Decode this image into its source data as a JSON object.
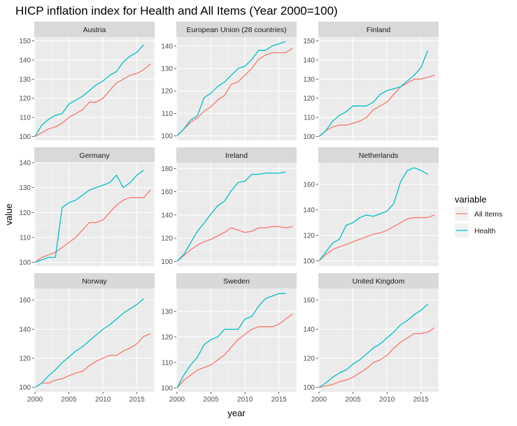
{
  "chart_data": {
    "type": "line",
    "title": "HICP inflation index for Health and All Items (Year 2000=100)",
    "xlabel": "year",
    "ylabel": "value",
    "x": [
      2000,
      2001,
      2002,
      2003,
      2004,
      2005,
      2006,
      2007,
      2008,
      2009,
      2010,
      2011,
      2012,
      2013,
      2014,
      2015,
      2016,
      2017
    ],
    "xlim": [
      1999.9,
      2017.6
    ],
    "x_ticks": [
      2000,
      2005,
      2010,
      2015
    ],
    "legend": {
      "title": "variable",
      "placement": "right",
      "entries": [
        {
          "name": "All Items",
          "color": "#F8766D"
        },
        {
          "name": "Health",
          "color": "#00BFC4"
        }
      ]
    },
    "panels": [
      {
        "name": "Austria",
        "ylim": [
          98,
          152
        ],
        "y_ticks": [
          100,
          110,
          120,
          130,
          140,
          150
        ],
        "series": [
          {
            "name": "All Items",
            "values": [
              100,
              102,
              104,
              105,
              107,
              110,
              112,
              114,
              118,
              118,
              120,
              124,
              128,
              130,
              132,
              133,
              135,
              138
            ]
          },
          {
            "name": "Health",
            "values": [
              100,
              106,
              109,
              111,
              112,
              117,
              119,
              121,
              124,
              127,
              129,
              132,
              134,
              139,
              142,
              144,
              148,
              null
            ]
          }
        ]
      },
      {
        "name": "European Union (28 countries)",
        "ylim": [
          98,
          144
        ],
        "y_ticks": [
          100,
          110,
          120,
          130,
          140
        ],
        "series": [
          {
            "name": "All Items",
            "values": [
              100,
              103,
              106,
              108,
              111,
              113,
              116,
              118,
              123,
              124,
              127,
              130,
              134,
              136,
              137,
              137,
              137,
              139
            ]
          },
          {
            "name": "Health",
            "values": [
              100,
              103,
              107,
              109,
              117,
              119,
              122,
              124,
              127,
              130,
              131,
              134,
              138,
              138,
              140,
              141,
              142,
              null
            ]
          }
        ]
      },
      {
        "name": "Finland",
        "ylim": [
          98,
          152
        ],
        "y_ticks": [
          100,
          110,
          120,
          130,
          140,
          150
        ],
        "series": [
          {
            "name": "All Items",
            "values": [
              100,
              103,
              105,
              106,
              106,
              107,
              108,
              110,
              114,
              116,
              118,
              122,
              126,
              128,
              130,
              130,
              131,
              132
            ]
          },
          {
            "name": "Health",
            "values": [
              100,
              103,
              108,
              111,
              113,
              116,
              116,
              116,
              118,
              122,
              124,
              125,
              126,
              129,
              132,
              136,
              145,
              null
            ]
          }
        ]
      },
      {
        "name": "Germany",
        "ylim": [
          98.5,
          140
        ],
        "y_ticks": [
          100,
          110,
          120,
          130,
          140
        ],
        "series": [
          {
            "name": "All Items",
            "values": [
              100,
              102,
              103,
              104,
              106,
              108,
              110,
              113,
              116,
              116,
              117,
              120,
              123,
              125,
              126,
              126,
              126,
              129
            ]
          },
          {
            "name": "Health",
            "values": [
              100,
              101,
              102,
              102,
              122,
              124,
              125,
              127,
              129,
              130,
              131,
              132,
              135,
              130,
              132,
              135,
              137,
              null
            ]
          }
        ]
      },
      {
        "name": "Ireland",
        "ylim": [
          96,
          185
        ],
        "y_ticks": [
          100,
          120,
          140,
          160,
          180
        ],
        "series": [
          {
            "name": "All Items",
            "values": [
              100,
              105,
              110,
              114,
              117,
              119,
              122,
              125,
              129,
              127,
              125,
              126,
              129,
              129,
              130,
              130,
              129,
              130
            ]
          },
          {
            "name": "Health",
            "values": [
              100,
              106,
              116,
              126,
              133,
              141,
              148,
              152,
              161,
              168,
              169,
              175,
              175,
              176,
              176,
              176,
              177,
              null
            ]
          }
        ]
      },
      {
        "name": "Netherlands",
        "ylim": [
          96,
          177
        ],
        "y_ticks": [
          100,
          120,
          140,
          160
        ],
        "series": [
          {
            "name": "All Items",
            "values": [
              100,
              105,
              109,
              111,
              113,
              115,
              117,
              119,
              121,
              122,
              124,
              127,
              130,
              133,
              134,
              134,
              134,
              136
            ]
          },
          {
            "name": "Health",
            "values": [
              100,
              107,
              114,
              117,
              128,
              130,
              134,
              136,
              135,
              137,
              139,
              145,
              162,
              171,
              173,
              171,
              168,
              null
            ]
          }
        ]
      },
      {
        "name": "Norway",
        "ylim": [
          97,
          168
        ],
        "y_ticks": [
          100,
          120,
          140,
          160
        ],
        "series": [
          {
            "name": "All Items",
            "values": [
              100,
              103,
              103,
              105,
              106,
              108,
              110,
              111,
              115,
              118,
              120,
              122,
              122,
              125,
              127,
              130,
              135,
              137
            ]
          },
          {
            "name": "Health",
            "values": [
              100,
              103,
              108,
              112,
              117,
              121,
              125,
              128,
              132,
              136,
              140,
              143,
              147,
              151,
              154,
              157,
              161,
              null
            ]
          }
        ]
      },
      {
        "name": "Sweden",
        "ylim": [
          98.5,
          139
        ],
        "y_ticks": [
          100,
          110,
          120,
          130
        ],
        "series": [
          {
            "name": "All Items",
            "values": [
              100,
              103,
              105,
              107,
              108,
              109,
              111,
              113,
              116,
              119,
              121,
              123,
              124,
              124,
              124,
              125,
              127,
              129
            ]
          },
          {
            "name": "Health",
            "values": [
              100,
              105,
              109,
              112,
              117,
              119,
              120,
              123,
              123,
              123,
              127,
              128,
              132,
              135,
              136,
              137,
              137,
              null
            ]
          }
        ]
      },
      {
        "name": "United Kingdom",
        "ylim": [
          97,
          168
        ],
        "y_ticks": [
          100,
          120,
          140,
          160
        ],
        "series": [
          {
            "name": "All Items",
            "values": [
              100,
              101,
              102,
              104,
              105,
              107,
              110,
              113,
              117,
              119,
              122,
              127,
              131,
              134,
              137,
              137,
              138,
              141
            ]
          },
          {
            "name": "Health",
            "values": [
              100,
              103,
              107,
              110,
              112,
              116,
              119,
              123,
              127,
              130,
              134,
              138,
              143,
              146,
              150,
              153,
              157,
              null
            ]
          }
        ]
      }
    ]
  }
}
